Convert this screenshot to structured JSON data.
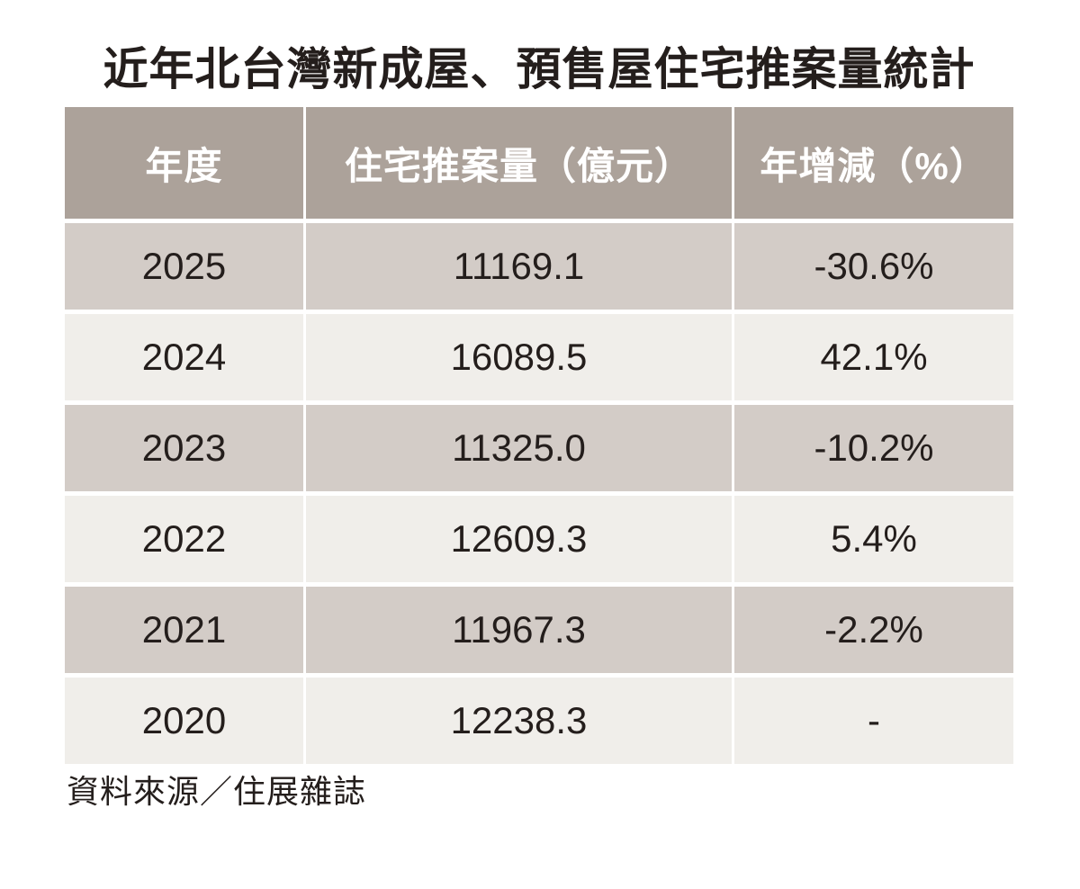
{
  "title": "近年北台灣新成屋、預售屋住宅推案量統計",
  "table": {
    "columns": [
      "年度",
      "住宅推案量（億元）",
      "年增減（%）"
    ],
    "rows": [
      {
        "year": "2025",
        "volume": "11169.1",
        "change": "-30.6%"
      },
      {
        "year": "2024",
        "volume": "16089.5",
        "change": "42.1%"
      },
      {
        "year": "2023",
        "volume": "11325.0",
        "change": "-10.2%"
      },
      {
        "year": "2022",
        "volume": "12609.3",
        "change": "5.4%"
      },
      {
        "year": "2021",
        "volume": "11967.3",
        "change": "-2.2%"
      },
      {
        "year": "2020",
        "volume": "12238.3",
        "change": "-"
      }
    ]
  },
  "source": "資料來源／住展雜誌",
  "colors": {
    "header_bg": "#aca29a",
    "row_dark_bg": "#d3ccc7",
    "row_light_bg": "#f0eeea",
    "text": "#241e1c",
    "header_text": "#ffffff",
    "page_bg": "#ffffff"
  },
  "chart_data": {
    "type": "table",
    "title": "近年北台灣新成屋、預售屋住宅推案量統計",
    "columns": [
      "年度",
      "住宅推案量（億元）",
      "年增減（%）"
    ],
    "rows": [
      [
        "2025",
        11169.1,
        "-30.6%"
      ],
      [
        "2024",
        16089.5,
        "42.1%"
      ],
      [
        "2023",
        11325.0,
        "-10.2%"
      ],
      [
        "2022",
        12609.3,
        "5.4%"
      ],
      [
        "2021",
        11967.3,
        "-2.2%"
      ],
      [
        "2020",
        12238.3,
        "-"
      ]
    ],
    "source": "資料來源／住展雜誌",
    "layout_hints": {
      "header_style": "white-text-on-taupe",
      "row_striping": "alternating dark taupe / off-white, starting dark",
      "cell_alignment": "center"
    }
  }
}
